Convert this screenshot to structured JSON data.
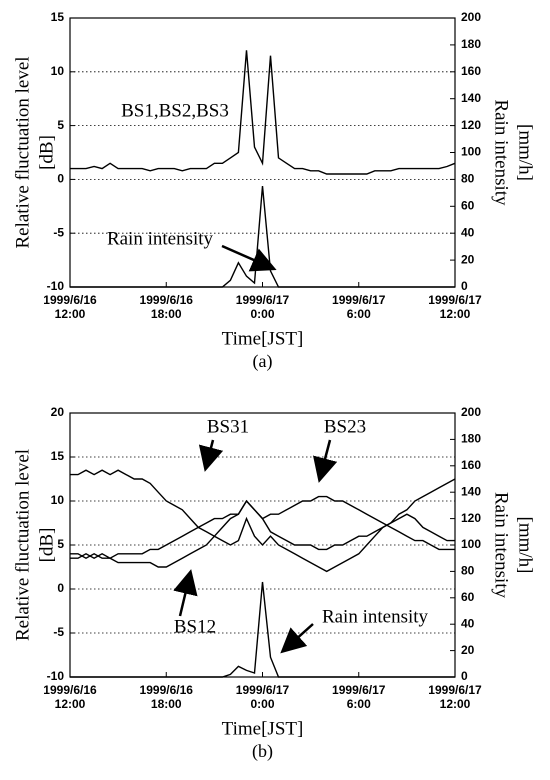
{
  "chart_data": [
    {
      "type": "line",
      "ylabel": [
        "Relative fluctuation level",
        "[dB]"
      ],
      "y2label": [
        "Rain intensity",
        "[mm/h]"
      ],
      "xlabel": "Time[JST]",
      "caption": "(a)",
      "x": [
        "1999/6/16 12:00",
        "1999/6/16 12:30",
        "1999/6/16 13:00",
        "1999/6/16 13:30",
        "1999/6/16 14:00",
        "1999/6/16 14:30",
        "1999/6/16 15:00",
        "1999/6/16 15:30",
        "1999/6/16 16:00",
        "1999/6/16 16:30",
        "1999/6/16 17:00",
        "1999/6/16 17:30",
        "1999/6/16 18:00",
        "1999/6/16 18:30",
        "1999/6/16 19:00",
        "1999/6/16 19:30",
        "1999/6/16 20:00",
        "1999/6/16 20:30",
        "1999/6/16 21:00",
        "1999/6/16 21:30",
        "1999/6/16 22:00",
        "1999/6/16 22:30",
        "1999/6/16 23:00",
        "1999/6/16 23:30",
        "1999/6/17 0:00",
        "1999/6/17 0:30",
        "1999/6/17 1:00",
        "1999/6/17 1:30",
        "1999/6/17 2:00",
        "1999/6/17 2:30",
        "1999/6/17 3:00",
        "1999/6/17 3:30",
        "1999/6/17 4:00",
        "1999/6/17 4:30",
        "1999/6/17 5:00",
        "1999/6/17 5:30",
        "1999/6/17 6:00",
        "1999/6/17 6:30",
        "1999/6/17 7:00",
        "1999/6/17 7:30",
        "1999/6/17 8:00",
        "1999/6/17 8:30",
        "1999/6/17 9:00",
        "1999/6/17 9:30",
        "1999/6/17 10:00",
        "1999/6/17 10:30",
        "1999/6/17 11:00",
        "1999/6/17 11:30",
        "1999/6/17 12:00"
      ],
      "xlim": [
        "1999/6/16 12:00",
        "1999/6/17 12:00"
      ],
      "xticks": [
        "1999/6/16 12:00",
        "1999/6/16 18:00",
        "1999/6/17 0:00",
        "1999/6/17 6:00",
        "1999/6/17 12:00"
      ],
      "ylim": [
        -10,
        15
      ],
      "yticks": [
        -10,
        -5,
        0,
        5,
        10,
        15
      ],
      "y2lim": [
        0,
        200
      ],
      "y2ticks": [
        0,
        20,
        40,
        60,
        80,
        100,
        120,
        140,
        160,
        180,
        200
      ],
      "grid": true,
      "series": [
        {
          "name": "BS1,BS2,BS3",
          "color": "#000000",
          "values": [
            1,
            1,
            1,
            1.2,
            1,
            1.5,
            1,
            1,
            1,
            1,
            0.8,
            1,
            1,
            1,
            0.8,
            1,
            1,
            1,
            1.5,
            1.5,
            2,
            2.5,
            12,
            3,
            1.5,
            11.5,
            2,
            1.5,
            1,
            1,
            0.8,
            0.8,
            0.5,
            0.5,
            0.5,
            0.5,
            0.5,
            0.5,
            0.8,
            0.8,
            0.8,
            1,
            1,
            1,
            1,
            1,
            1,
            1.2,
            1.5
          ]
        },
        {
          "name": "Rain intensity",
          "color": "#000000",
          "axis": "y2",
          "values": [
            0,
            0,
            0,
            0,
            0,
            0,
            0,
            0,
            0,
            0,
            0,
            0,
            0,
            0,
            0,
            0,
            0,
            0,
            0,
            0,
            5,
            18,
            8,
            3,
            75,
            12,
            0,
            0,
            0,
            0,
            0,
            0,
            0,
            0,
            0,
            0,
            0,
            0,
            0,
            0,
            0,
            0,
            0,
            0,
            0,
            0,
            0,
            0,
            0
          ]
        }
      ]
    },
    {
      "type": "line",
      "ylabel": [
        "Relative fluctuation level",
        "[dB]"
      ],
      "y2label": [
        "Rain intensity",
        "[mm/h]"
      ],
      "xlabel": "Time[JST]",
      "caption": "(b)",
      "x": [
        "1999/6/16 12:00",
        "1999/6/16 12:30",
        "1999/6/16 13:00",
        "1999/6/16 13:30",
        "1999/6/16 14:00",
        "1999/6/16 14:30",
        "1999/6/16 15:00",
        "1999/6/16 15:30",
        "1999/6/16 16:00",
        "1999/6/16 16:30",
        "1999/6/16 17:00",
        "1999/6/16 17:30",
        "1999/6/16 18:00",
        "1999/6/16 18:30",
        "1999/6/16 19:00",
        "1999/6/16 19:30",
        "1999/6/16 20:00",
        "1999/6/16 20:30",
        "1999/6/16 21:00",
        "1999/6/16 21:30",
        "1999/6/16 22:00",
        "1999/6/16 22:30",
        "1999/6/16 23:00",
        "1999/6/16 23:30",
        "1999/6/17 0:00",
        "1999/6/17 0:30",
        "1999/6/17 1:00",
        "1999/6/17 1:30",
        "1999/6/17 2:00",
        "1999/6/17 2:30",
        "1999/6/17 3:00",
        "1999/6/17 3:30",
        "1999/6/17 4:00",
        "1999/6/17 4:30",
        "1999/6/17 5:00",
        "1999/6/17 5:30",
        "1999/6/17 6:00",
        "1999/6/17 6:30",
        "1999/6/17 7:00",
        "1999/6/17 7:30",
        "1999/6/17 8:00",
        "1999/6/17 8:30",
        "1999/6/17 9:00",
        "1999/6/17 9:30",
        "1999/6/17 10:00",
        "1999/6/17 10:30",
        "1999/6/17 11:00",
        "1999/6/17 11:30",
        "1999/6/17 12:00"
      ],
      "xlim": [
        "1999/6/16 12:00",
        "1999/6/17 12:00"
      ],
      "xticks": [
        "1999/6/16 12:00",
        "1999/6/16 18:00",
        "1999/6/17 0:00",
        "1999/6/17 6:00",
        "1999/6/17 12:00"
      ],
      "ylim": [
        -10,
        20
      ],
      "yticks": [
        -10,
        -5,
        0,
        5,
        10,
        15,
        20
      ],
      "y2lim": [
        0,
        200
      ],
      "y2ticks": [
        0,
        20,
        40,
        60,
        80,
        100,
        120,
        140,
        160,
        180,
        200
      ],
      "grid": true,
      "series": [
        {
          "name": "BS31",
          "color": "#000000",
          "values": [
            13,
            13,
            13.5,
            13,
            13.5,
            13,
            13.5,
            13,
            12.5,
            12.5,
            12,
            11,
            10,
            9.5,
            9,
            8,
            7,
            6.5,
            6,
            5.5,
            5,
            5.5,
            8,
            6,
            5,
            6,
            5,
            4.5,
            4,
            3.5,
            3,
            2.5,
            2,
            2.5,
            3,
            3.5,
            4,
            5,
            6,
            7,
            7.5,
            8.5,
            9,
            10,
            10.5,
            11,
            11.5,
            12,
            12.5
          ]
        },
        {
          "name": "BS23",
          "color": "#000000",
          "values": [
            4,
            4,
            3.5,
            4,
            3.5,
            3.5,
            3,
            3,
            3,
            3,
            3,
            2.5,
            2.5,
            3,
            3.5,
            4,
            4.5,
            5,
            6,
            7,
            8,
            8.5,
            10,
            9,
            8,
            8.5,
            8.5,
            9,
            9.5,
            10,
            10,
            10.5,
            10.5,
            10,
            10,
            9.5,
            9,
            8.5,
            8,
            7.5,
            7,
            6.5,
            6,
            5.5,
            5.5,
            5,
            4.5,
            4.5,
            4.5
          ]
        },
        {
          "name": "BS12",
          "color": "#000000",
          "values": [
            3.5,
            3.5,
            4,
            3.5,
            4,
            3.5,
            4,
            4,
            4,
            4,
            4.5,
            4.5,
            5,
            5.5,
            6,
            6.5,
            7,
            7.5,
            8,
            8,
            8.5,
            8.5,
            10,
            9,
            8,
            6.5,
            6,
            5.5,
            5,
            5,
            5,
            4.5,
            4.5,
            5,
            5,
            5.5,
            6,
            6,
            6.5,
            7,
            7.5,
            8,
            8.5,
            8,
            7,
            6.5,
            6,
            5.5,
            5.5
          ]
        },
        {
          "name": "Rain intensity",
          "color": "#000000",
          "axis": "y2",
          "values": [
            0,
            0,
            0,
            0,
            0,
            0,
            0,
            0,
            0,
            0,
            0,
            0,
            0,
            0,
            0,
            0,
            0,
            0,
            0,
            0,
            2,
            8,
            5,
            3,
            72,
            15,
            0,
            0,
            0,
            0,
            0,
            0,
            0,
            0,
            0,
            0,
            0,
            0,
            0,
            0,
            0,
            0,
            0,
            0,
            0,
            0,
            0,
            0,
            0
          ]
        }
      ]
    }
  ]
}
